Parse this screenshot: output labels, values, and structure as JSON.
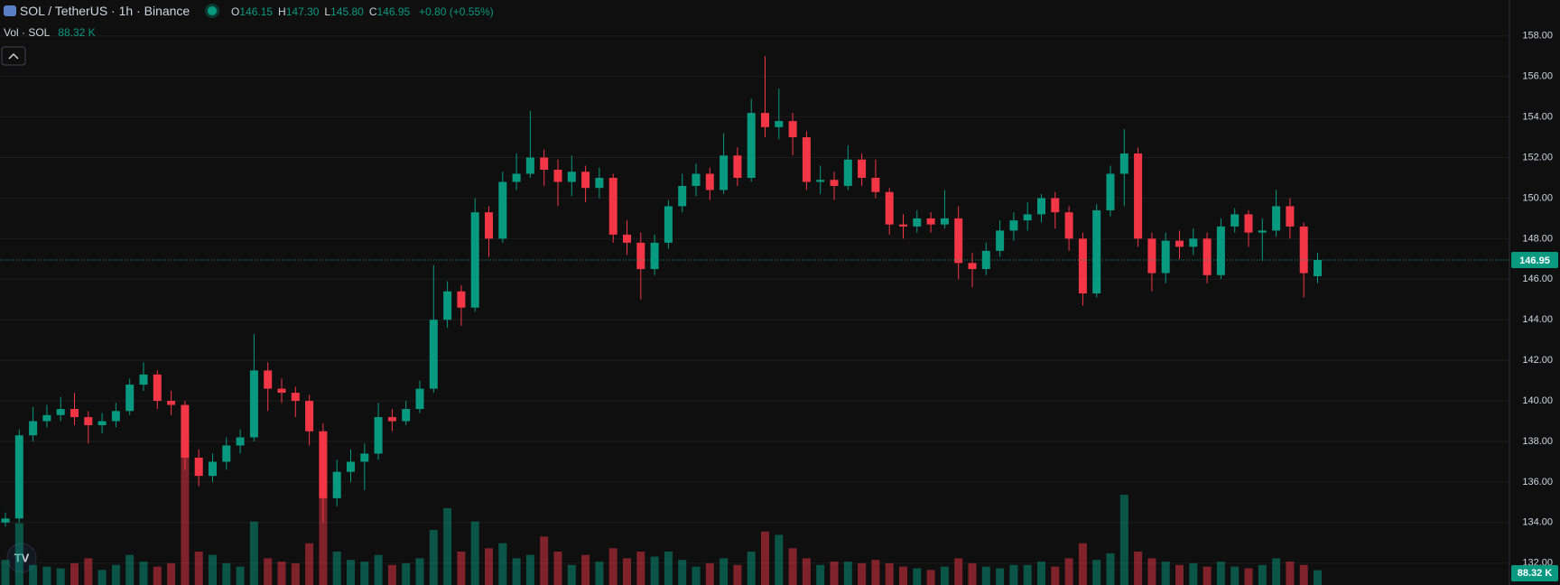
{
  "chart_data": {
    "type": "candlestick",
    "title": "SOL / TetherUS · 1h · Binance",
    "ohlc_legend": [
      {
        "key": "O",
        "value": "146.15"
      },
      {
        "key": "H",
        "value": "147.30"
      },
      {
        "key": "L",
        "value": "145.80"
      },
      {
        "key": "C",
        "value": "146.95"
      }
    ],
    "change": "+0.80 (+0.55%)",
    "volume_title": "Vol · SOL",
    "volume_value": "88.32 K",
    "last_price_label": "146.95",
    "last_volume_label": "88.32 K",
    "up_color": "#089981",
    "down_color": "#f23645",
    "open": [
      134.0,
      134.2,
      138.3,
      139.0,
      139.3,
      139.6,
      139.2,
      138.8,
      139.0,
      139.5,
      140.8,
      141.3,
      140.0,
      139.8,
      137.2,
      136.3,
      137.0,
      137.8,
      138.2,
      141.5,
      140.6,
      140.4,
      140.0,
      138.5,
      135.2,
      136.5,
      137.0,
      137.4,
      139.2,
      139.0,
      139.6,
      140.6,
      144.0,
      145.4,
      144.6,
      149.3,
      148.0,
      150.8,
      151.2,
      152.0,
      151.4,
      150.8,
      151.3,
      150.5,
      151.0,
      148.2,
      147.8,
      146.5,
      147.8,
      149.6,
      150.6,
      151.2,
      150.4,
      152.1,
      151.0,
      154.2,
      153.5,
      153.8,
      153.0,
      150.8,
      150.9,
      150.6,
      151.9,
      151.0,
      150.3,
      148.7,
      148.6,
      149.0,
      148.7,
      149.0,
      146.8,
      146.5,
      147.4,
      148.4,
      148.9,
      149.2,
      150.0,
      149.3,
      148.0,
      145.3,
      149.4,
      151.2,
      152.2,
      148.0,
      146.3,
      147.9,
      147.6,
      148.0,
      146.2,
      148.6,
      149.2,
      148.3,
      148.4,
      149.6,
      148.6,
      146.15
    ],
    "high": [
      134.5,
      138.6,
      139.7,
      139.8,
      140.2,
      140.4,
      139.5,
      139.4,
      139.9,
      141.1,
      141.9,
      141.5,
      140.5,
      140.0,
      137.6,
      137.4,
      138.2,
      138.6,
      143.3,
      141.9,
      141.1,
      140.7,
      140.3,
      138.9,
      137.1,
      137.6,
      137.9,
      139.9,
      139.6,
      140.0,
      141.0,
      146.7,
      145.9,
      145.7,
      150.0,
      149.6,
      151.3,
      152.2,
      154.3,
      152.4,
      151.9,
      152.1,
      151.6,
      151.5,
      151.2,
      148.9,
      148.3,
      148.2,
      149.9,
      151.2,
      151.7,
      151.5,
      153.2,
      152.5,
      154.9,
      157.0,
      155.4,
      154.2,
      153.3,
      151.6,
      151.3,
      152.6,
      152.2,
      151.9,
      150.5,
      149.2,
      149.4,
      149.3,
      150.4,
      149.6,
      147.3,
      147.8,
      148.9,
      149.3,
      149.8,
      150.2,
      150.3,
      149.6,
      148.3,
      149.7,
      151.6,
      153.4,
      152.5,
      148.3,
      148.3,
      148.4,
      148.5,
      148.3,
      149.0,
      149.5,
      149.4,
      149.0,
      150.4,
      150.0,
      148.8,
      147.3
    ],
    "low": [
      133.8,
      134.0,
      138.0,
      138.7,
      139.0,
      138.8,
      137.9,
      138.4,
      138.7,
      139.3,
      140.5,
      139.6,
      139.3,
      136.6,
      135.8,
      136.0,
      136.6,
      137.4,
      138.0,
      139.5,
      139.9,
      139.2,
      137.8,
      134.0,
      134.8,
      136.0,
      135.6,
      137.1,
      138.5,
      138.8,
      139.4,
      140.4,
      143.6,
      143.7,
      144.4,
      147.1,
      147.8,
      150.4,
      151.0,
      150.6,
      149.6,
      150.1,
      149.8,
      150.0,
      147.8,
      147.2,
      145.0,
      146.2,
      147.5,
      149.3,
      150.1,
      149.9,
      150.2,
      150.6,
      150.8,
      153.0,
      152.9,
      152.1,
      150.4,
      150.2,
      149.9,
      150.4,
      150.6,
      150.0,
      148.2,
      148.0,
      148.3,
      148.3,
      148.5,
      146.0,
      145.6,
      146.2,
      147.1,
      147.9,
      148.4,
      148.8,
      148.5,
      147.4,
      144.7,
      145.1,
      149.1,
      149.6,
      147.6,
      145.4,
      145.8,
      147.0,
      147.2,
      145.8,
      146.0,
      148.3,
      147.6,
      146.9,
      148.1,
      148.0,
      145.1,
      145.8
    ],
    "close": [
      134.2,
      138.3,
      139.0,
      139.3,
      139.6,
      139.2,
      138.8,
      139.0,
      139.5,
      140.8,
      141.3,
      140.0,
      139.8,
      137.2,
      136.3,
      137.0,
      137.8,
      138.2,
      141.5,
      140.6,
      140.4,
      140.0,
      138.5,
      135.2,
      136.5,
      137.0,
      137.4,
      139.2,
      139.0,
      139.6,
      140.6,
      144.0,
      145.4,
      144.6,
      149.3,
      148.0,
      150.8,
      151.2,
      152.0,
      151.4,
      150.8,
      151.3,
      150.5,
      151.0,
      148.2,
      147.8,
      146.5,
      147.8,
      149.6,
      150.6,
      151.2,
      150.4,
      152.1,
      151.0,
      154.2,
      153.5,
      153.8,
      153.0,
      150.8,
      150.9,
      150.6,
      151.9,
      151.0,
      150.3,
      148.7,
      148.6,
      149.0,
      148.7,
      149.0,
      146.8,
      146.5,
      147.4,
      148.4,
      148.9,
      149.2,
      150.0,
      149.3,
      148.0,
      145.3,
      149.4,
      151.2,
      152.2,
      148.0,
      146.3,
      147.9,
      147.6,
      148.0,
      146.2,
      148.6,
      149.2,
      148.3,
      148.4,
      149.6,
      148.6,
      146.3,
      146.95
    ],
    "volume": [
      150,
      370,
      120,
      110,
      100,
      130,
      160,
      90,
      120,
      180,
      140,
      110,
      130,
      900,
      200,
      180,
      130,
      110,
      380,
      160,
      140,
      130,
      250,
      920,
      200,
      150,
      140,
      180,
      120,
      130,
      160,
      330,
      460,
      200,
      380,
      220,
      250,
      160,
      180,
      290,
      200,
      120,
      180,
      140,
      220,
      160,
      200,
      170,
      200,
      150,
      110,
      130,
      160,
      120,
      200,
      320,
      300,
      220,
      160,
      120,
      140,
      140,
      130,
      150,
      130,
      110,
      100,
      90,
      110,
      160,
      130,
      110,
      100,
      120,
      120,
      140,
      110,
      160,
      250,
      150,
      190,
      540,
      200,
      160,
      140,
      120,
      130,
      110,
      140,
      110,
      100,
      120,
      160,
      140,
      120,
      88.32
    ],
    "ylim": [
      159.77,
      130.92
    ],
    "volume_lim": [
      0,
      1000
    ],
    "yticks": [
      {
        "value": 132,
        "label": "132.00"
      },
      {
        "value": 134,
        "label": "134.00"
      },
      {
        "value": 136,
        "label": "136.00"
      },
      {
        "value": 138,
        "label": "138.00"
      },
      {
        "value": 140,
        "label": "140.00"
      },
      {
        "value": 142,
        "label": "142.00"
      },
      {
        "value": 144,
        "label": "144.00"
      },
      {
        "value": 146,
        "label": "146.00"
      },
      {
        "value": 148,
        "label": "148.00"
      },
      {
        "value": 150,
        "label": "150.00"
      },
      {
        "value": 152,
        "label": "152.00"
      },
      {
        "value": 154,
        "label": "154.00"
      },
      {
        "value": 156,
        "label": "156.00"
      },
      {
        "value": 158,
        "label": "158.00"
      }
    ],
    "grid": true
  }
}
